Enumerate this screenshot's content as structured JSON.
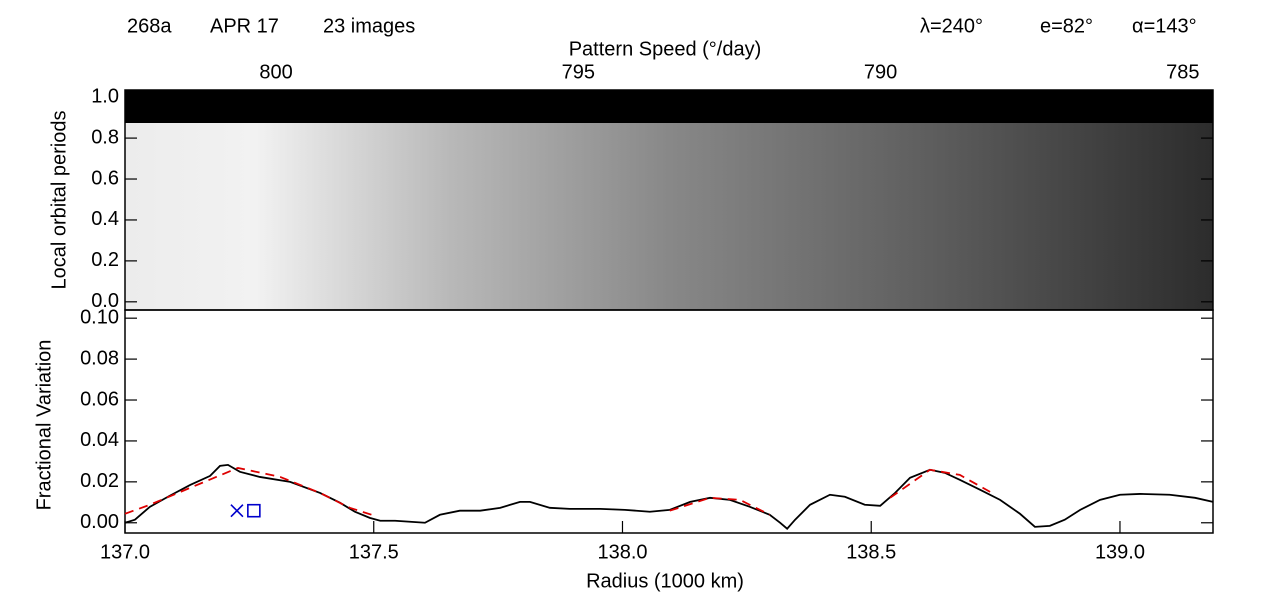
{
  "chart_data": [
    {
      "type": "heatmap",
      "annotations": [
        "268a",
        "APR 17",
        "23 images",
        "λ=240°",
        "e=82°",
        "α=143°"
      ],
      "xlabel": "Pattern Speed (°/day)",
      "ylabel": "Local orbital periods",
      "xlim": [
        802.5,
        784.5
      ],
      "xticks": [
        800,
        795,
        790,
        785
      ],
      "ylim": [
        -0.04,
        1.035
      ],
      "yticks": [
        {
          "value": 0,
          "label": "0.0"
        },
        {
          "value": 0.2,
          "label": "0.2"
        },
        {
          "value": 0.4,
          "label": "0.4"
        },
        {
          "value": 0.6,
          "label": "0.6"
        },
        {
          "value": 0.8,
          "label": "0.8"
        },
        {
          "value": 1,
          "label": "1.0"
        }
      ]
    },
    {
      "type": "line",
      "xlabel": "Radius (1000 km)",
      "ylabel": "Fractional Variation",
      "xlim": [
        137.0,
        139.187
      ],
      "xticks": [
        {
          "value": 137,
          "label": "137.0"
        },
        137.5,
        {
          "value": 138,
          "label": "138.0"
        },
        138.5,
        {
          "value": 139,
          "label": "139.0"
        }
      ],
      "ylim": [
        -0.005,
        0.104
      ],
      "yticks": [
        {
          "value": 0,
          "label": "0.00"
        },
        {
          "value": 0.02,
          "label": "0.02"
        },
        {
          "value": 0.04,
          "label": "0.04"
        },
        {
          "value": 0.06,
          "label": "0.06"
        },
        {
          "value": 0.08,
          "label": "0.08"
        },
        {
          "value": 0.1,
          "label": "0.10"
        }
      ],
      "series": [
        {
          "color": "#000000",
          "dash": false,
          "x": [
            137.0,
            137.02,
            137.05,
            137.09,
            137.131,
            137.171,
            137.191,
            137.207,
            137.231,
            137.271,
            137.332,
            137.392,
            137.432,
            137.462,
            137.492,
            137.513,
            137.543,
            137.573,
            137.603,
            137.633,
            137.673,
            137.714,
            137.754,
            137.794,
            137.814,
            137.854,
            137.894,
            137.955,
            138.005,
            138.055,
            138.095,
            138.136,
            138.176,
            138.216,
            138.256,
            138.296,
            138.317,
            138.331,
            138.347,
            138.377,
            138.417,
            138.447,
            138.487,
            138.518,
            138.548,
            138.578,
            138.618,
            138.648,
            138.678,
            138.719,
            138.759,
            138.799,
            138.829,
            138.859,
            138.889,
            138.92,
            138.96,
            139.0,
            139.04,
            139.1,
            139.151,
            139.187
          ],
          "values": [
            0.0,
            0.0015,
            0.0078,
            0.0132,
            0.0185,
            0.0229,
            0.0278,
            0.0283,
            0.0249,
            0.0224,
            0.02,
            0.0146,
            0.0098,
            0.0054,
            0.0024,
            0.001,
            0.001,
            0.0005,
            0.0,
            0.0039,
            0.0059,
            0.0059,
            0.0073,
            0.0102,
            0.0102,
            0.0073,
            0.0068,
            0.0068,
            0.0063,
            0.0054,
            0.0063,
            0.0102,
            0.0122,
            0.0112,
            0.0078,
            0.0039,
            0.0,
            -0.0029,
            0.0015,
            0.0088,
            0.0137,
            0.0127,
            0.0088,
            0.0083,
            0.0146,
            0.022,
            0.0259,
            0.0244,
            0.021,
            0.0161,
            0.0112,
            0.0044,
            -0.002,
            -0.0015,
            0.0015,
            0.0063,
            0.0112,
            0.0137,
            0.0141,
            0.0137,
            0.0122,
            0.0102
          ]
        },
        {
          "color": "#dd0000",
          "dash": true,
          "x": [
            137.0,
            137.05,
            137.131,
            137.227,
            137.312,
            137.392,
            137.452,
            137.496
          ],
          "values": [
            0.0044,
            0.0088,
            0.0171,
            0.0268,
            0.0224,
            0.0146,
            0.0073,
            0.0039
          ]
        },
        {
          "color": "#dd0000",
          "dash": true,
          "x": [
            138.095,
            138.176,
            138.236,
            138.296
          ],
          "values": [
            0.0059,
            0.0122,
            0.0112,
            0.0039
          ]
        },
        {
          "color": "#dd0000",
          "dash": true,
          "x": [
            138.538,
            138.618,
            138.678,
            138.739
          ],
          "values": [
            0.0122,
            0.0259,
            0.0234,
            0.0151
          ]
        },
        {
          "color": "#0000cc",
          "marker": "x",
          "x": [
            137.225
          ],
          "values": [
            0.0059
          ]
        },
        {
          "color": "#0000cc",
          "marker": "square",
          "x": [
            137.259
          ],
          "values": [
            0.0059
          ]
        }
      ]
    }
  ]
}
